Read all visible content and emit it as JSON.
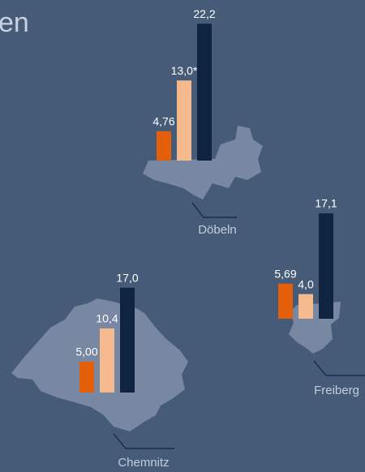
{
  "title": "en",
  "colors": [
    "#e35f0a",
    "#f4b98c",
    "#0e2440"
  ],
  "regions": [
    {
      "name": "Döbeln",
      "values": [
        4.76,
        13.0,
        22.2
      ],
      "value_labels": [
        "4,76",
        "13,0*",
        "22,2"
      ]
    },
    {
      "name": "Chemnitz",
      "values": [
        5.0,
        10.4,
        17.0
      ],
      "value_labels": [
        "5,00",
        "10,4",
        "17,0"
      ]
    },
    {
      "name": "Freiberg",
      "values": [
        5.69,
        4.0,
        17.1
      ],
      "value_labels": [
        "5,69",
        "4,0",
        "17,1"
      ]
    }
  ]
}
